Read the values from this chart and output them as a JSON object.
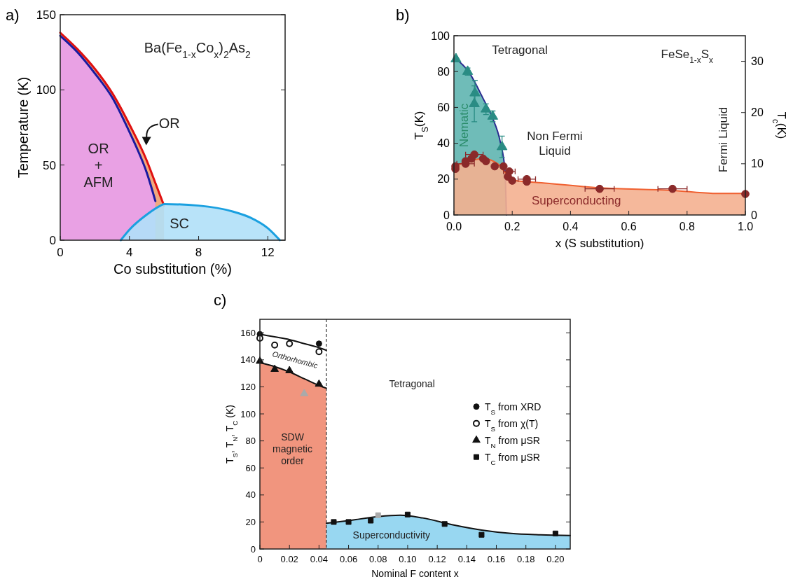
{
  "chart_data": [
    {
      "type": "area",
      "title": "a)",
      "xlabel": "Co substitution (%)",
      "ylabel": "Temperature (K)",
      "xlim": [
        0,
        13
      ],
      "ylim": [
        0,
        150
      ],
      "xticks": [
        0,
        4,
        8,
        12
      ],
      "yticks": [
        0,
        50,
        100,
        150
      ],
      "series": [
        {
          "color": "#f0a070",
          "x": [
            0,
            1,
            2,
            3,
            4,
            5,
            5.5,
            6
          ],
          "values": [
            138,
            127,
            114,
            98,
            77,
            53,
            38,
            23
          ]
        },
        {
          "color": "#e8a0f0",
          "x": [
            0,
            1,
            2,
            3,
            4,
            4.4,
            5,
            5.5
          ],
          "values": [
            136,
            125,
            111,
            95,
            72,
            62,
            45,
            26
          ]
        },
        {
          "color": "#b0e0f8",
          "x": [
            3.5,
            4,
            5,
            5.8,
            6,
            8,
            10,
            11,
            12,
            12.7
          ],
          "values": [
            0,
            7,
            17,
            23,
            24,
            23,
            19,
            15,
            8,
            0
          ]
        }
      ],
      "annotations": [
        "Ba(Fe$_{1-x}$Co$_{x}$)$_{2}$As$_{2}$",
        "OR",
        "OR + AFM",
        "SC"
      ]
    },
    {
      "type": "area",
      "title": "b)",
      "xlabel": "x (S substitution)",
      "ylabel": "T$_{S}$(K)",
      "y2label": "T$_{c}$(K)",
      "xlim": [
        0,
        1
      ],
      "ylim": [
        0,
        100
      ],
      "y2lim": [
        0,
        35
      ],
      "xticks": [
        {
          "value": 0,
          "label": "0.0"
        },
        0.2,
        0.4,
        0.6,
        0.8,
        {
          "value": 1,
          "label": "1.0"
        }
      ],
      "yticks": [
        0,
        20,
        40,
        60,
        80,
        100
      ],
      "y2ticks": [
        0,
        10,
        20,
        30
      ],
      "series": [
        {
          "color": "#5fb5b0",
          "x": [
            0,
            0.05,
            0.1,
            0.13,
            0.16,
            0.175,
            0.18
          ],
          "values": [
            88,
            80,
            65,
            55,
            40,
            25,
            0
          ]
        },
        {
          "axis": "y2",
          "color": "#f4b090",
          "x": [
            0,
            0.05,
            0.1,
            0.15,
            0.18,
            0.2,
            0.3,
            0.5,
            0.75,
            0.9,
            1
          ],
          "values": [
            9.5,
            10.5,
            11,
            10,
            8,
            6.8,
            6.3,
            5.3,
            4.8,
            4.2,
            4.2
          ]
        },
        {
          "type": "scatter",
          "marker": "triangle",
          "color": "#2a8c84",
          "x": [
            0.007,
            0.047,
            0.072,
            0.07,
            0.11,
            0.133,
            0.165
          ],
          "values": [
            87,
            80,
            68,
            62,
            59,
            55,
            38
          ],
          "errors": [
            null,
            2,
            7,
            10,
            3,
            3,
            6
          ]
        },
        {
          "type": "scatter",
          "axis": "y2",
          "marker": "circle",
          "color": "#8b2a2a",
          "x": [
            0.005,
            0.005,
            0.04,
            0.04,
            0.06,
            0.07,
            0.1,
            0.11,
            0.14,
            0.17,
            0.19,
            0.185,
            0.2,
            0.25,
            0.25,
            0.5,
            0.75,
            1
          ],
          "values": [
            9,
            9.5,
            10,
            10.5,
            11,
            11.8,
            11,
            10.5,
            9.5,
            9.5,
            8.5,
            7.5,
            6.7,
            7,
            6.5,
            5.1,
            5.1,
            4.1
          ],
          "xerrors": [
            null,
            null,
            0.03,
            null,
            null,
            0.03,
            null,
            null,
            null,
            null,
            0.02,
            null,
            null,
            0.03,
            null,
            0.05,
            0.05,
            null
          ]
        }
      ],
      "annotations": [
        "Tetragonal",
        "FeSe$_{1-x}$S$_{x}$",
        "Nematic",
        "Non Fermi Liquid",
        "Fermi Liquid",
        "Superconducting"
      ]
    },
    {
      "type": "area",
      "title": "c)",
      "xlabel": "Nominal F content x",
      "ylabel": "T$_{S}$, T$_{N}$, T$_{C}$ (K)",
      "xlim": [
        0,
        0.21
      ],
      "ylim": [
        0,
        170
      ],
      "xticks": [
        0,
        0.02,
        0.04,
        0.06,
        0.08,
        {
          "value": 0.1,
          "label": "0.10"
        },
        0.12,
        0.14,
        0.16,
        0.18,
        {
          "value": 0.2,
          "label": "0.20"
        }
      ],
      "yticks": [
        0,
        20,
        40,
        60,
        80,
        100,
        120,
        140,
        160
      ],
      "legend": "right",
      "ref_lines": [
        {
          "axis": "x",
          "value": 0.045,
          "line_style": "dashed",
          "color": "#333333"
        }
      ],
      "series": [
        {
          "color": "#f08a70",
          "x": [
            0,
            0.01,
            0.02,
            0.03,
            0.04,
            0.045
          ],
          "values": [
            138,
            135,
            131,
            126,
            121,
            119
          ]
        },
        {
          "color": "#8dd3f0",
          "x": [
            0.045,
            0.06,
            0.08,
            0.095,
            0.11,
            0.13,
            0.15,
            0.17,
            0.19,
            0.21
          ],
          "values": [
            19,
            21,
            24,
            25,
            23,
            18,
            14,
            11.5,
            10.5,
            10
          ]
        },
        {
          "type": "line",
          "color": "#111111",
          "x": [
            0,
            0.01,
            0.02,
            0.03,
            0.04,
            0.045
          ],
          "values": [
            159,
            157,
            155,
            152,
            149,
            147
          ]
        },
        {
          "type": "scatter",
          "name": "T$_{S}$ from XRD",
          "marker": "circle",
          "color": "#111111",
          "x": [
            0,
            0.04
          ],
          "values": [
            159,
            152
          ]
        },
        {
          "type": "scatter",
          "name": "T$_{S}$ from χ(T)",
          "marker": "circle",
          "color": "#ffffff",
          "x": [
            0,
            0.01,
            0.02,
            0.04
          ],
          "values": [
            156,
            151,
            152,
            146
          ]
        },
        {
          "type": "scatter",
          "name": "T$_{N}$ from μSR",
          "marker": "triangle",
          "color": "#111111",
          "colors": [
            "#111111",
            "#111111",
            "#111111",
            "#aaaaaa",
            "#111111"
          ],
          "x": [
            0,
            0.01,
            0.02,
            0.03,
            0.04
          ],
          "values": [
            139,
            133,
            132,
            115,
            122
          ]
        },
        {
          "type": "scatter",
          "name": "T$_{C}$ from μSR",
          "marker": "square",
          "color": "#111111",
          "colors": [
            "#111111",
            "#111111",
            "#111111",
            "#aaaaaa",
            "#111111",
            "#111111",
            "#111111",
            "#111111"
          ],
          "x": [
            0.05,
            0.06,
            0.075,
            0.08,
            0.1,
            0.125,
            0.15,
            0.2
          ],
          "values": [
            20,
            20,
            21,
            25,
            25.5,
            18.5,
            10.5,
            11.5
          ]
        }
      ],
      "annotations": [
        "Orthorhombic",
        "Tetragonal",
        "SDW magnetic order",
        "Superconductivity"
      ]
    }
  ]
}
